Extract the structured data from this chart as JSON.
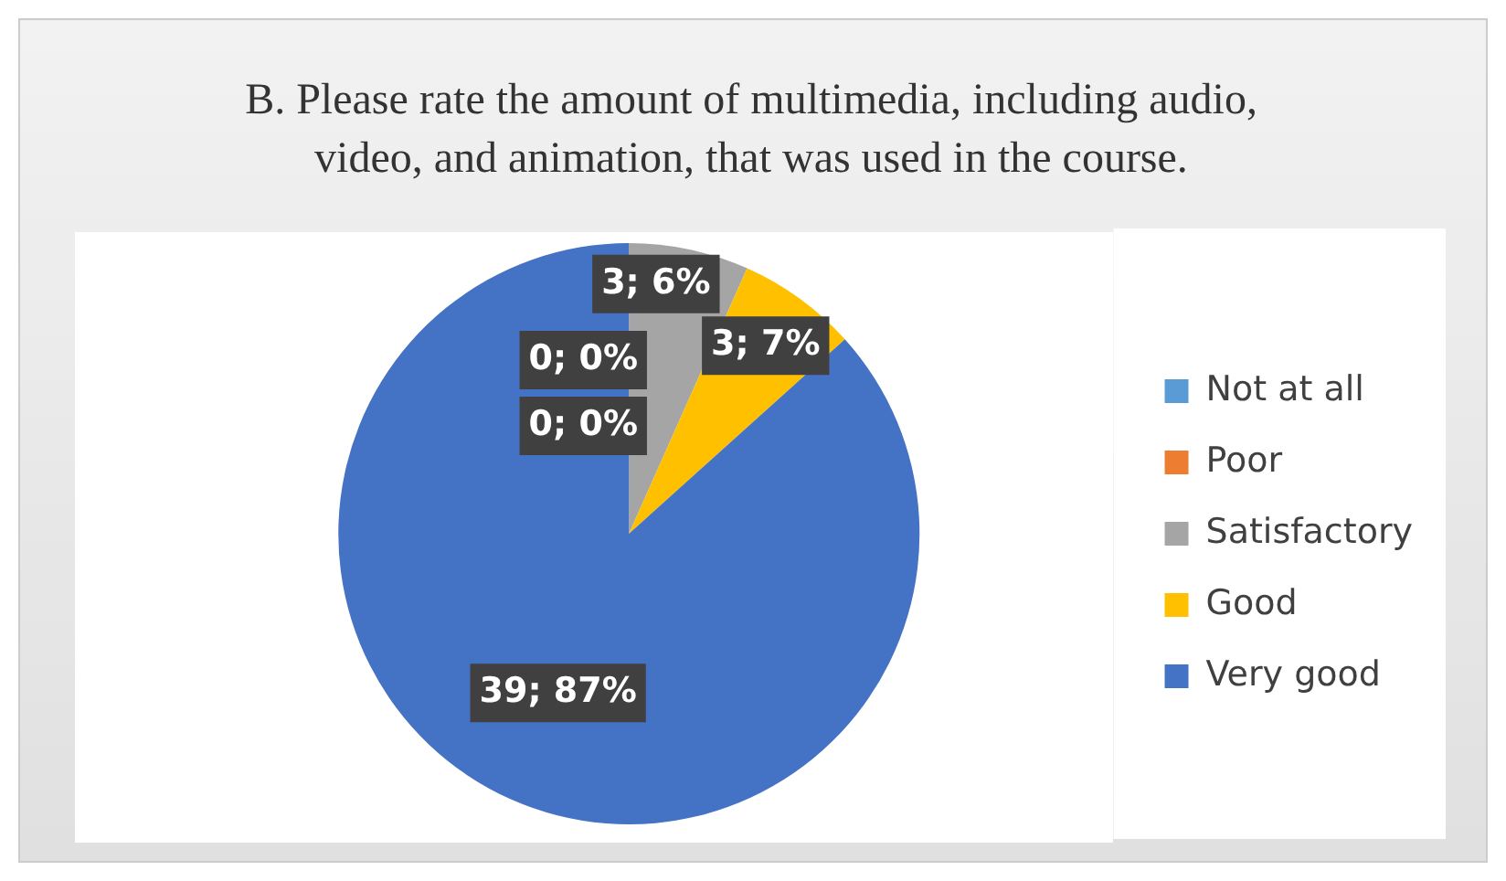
{
  "chart_data": {
    "type": "pie",
    "title": "B. Please rate the amount of multimedia, including audio, video, and animation, that was used in the course.",
    "categories": [
      "Not at all",
      "Poor",
      "Satisfactory",
      "Good",
      "Very good"
    ],
    "values": [
      0,
      0,
      3,
      3,
      39
    ],
    "colors": [
      "#5b9bd5",
      "#ed7d31",
      "#a5a5a5",
      "#ffc000",
      "#4472c4"
    ],
    "value_labels": [
      "0; 0%",
      "0; 0%",
      "3; 6%",
      "3; 7%",
      "39; 87%"
    ],
    "legend": "right"
  }
}
